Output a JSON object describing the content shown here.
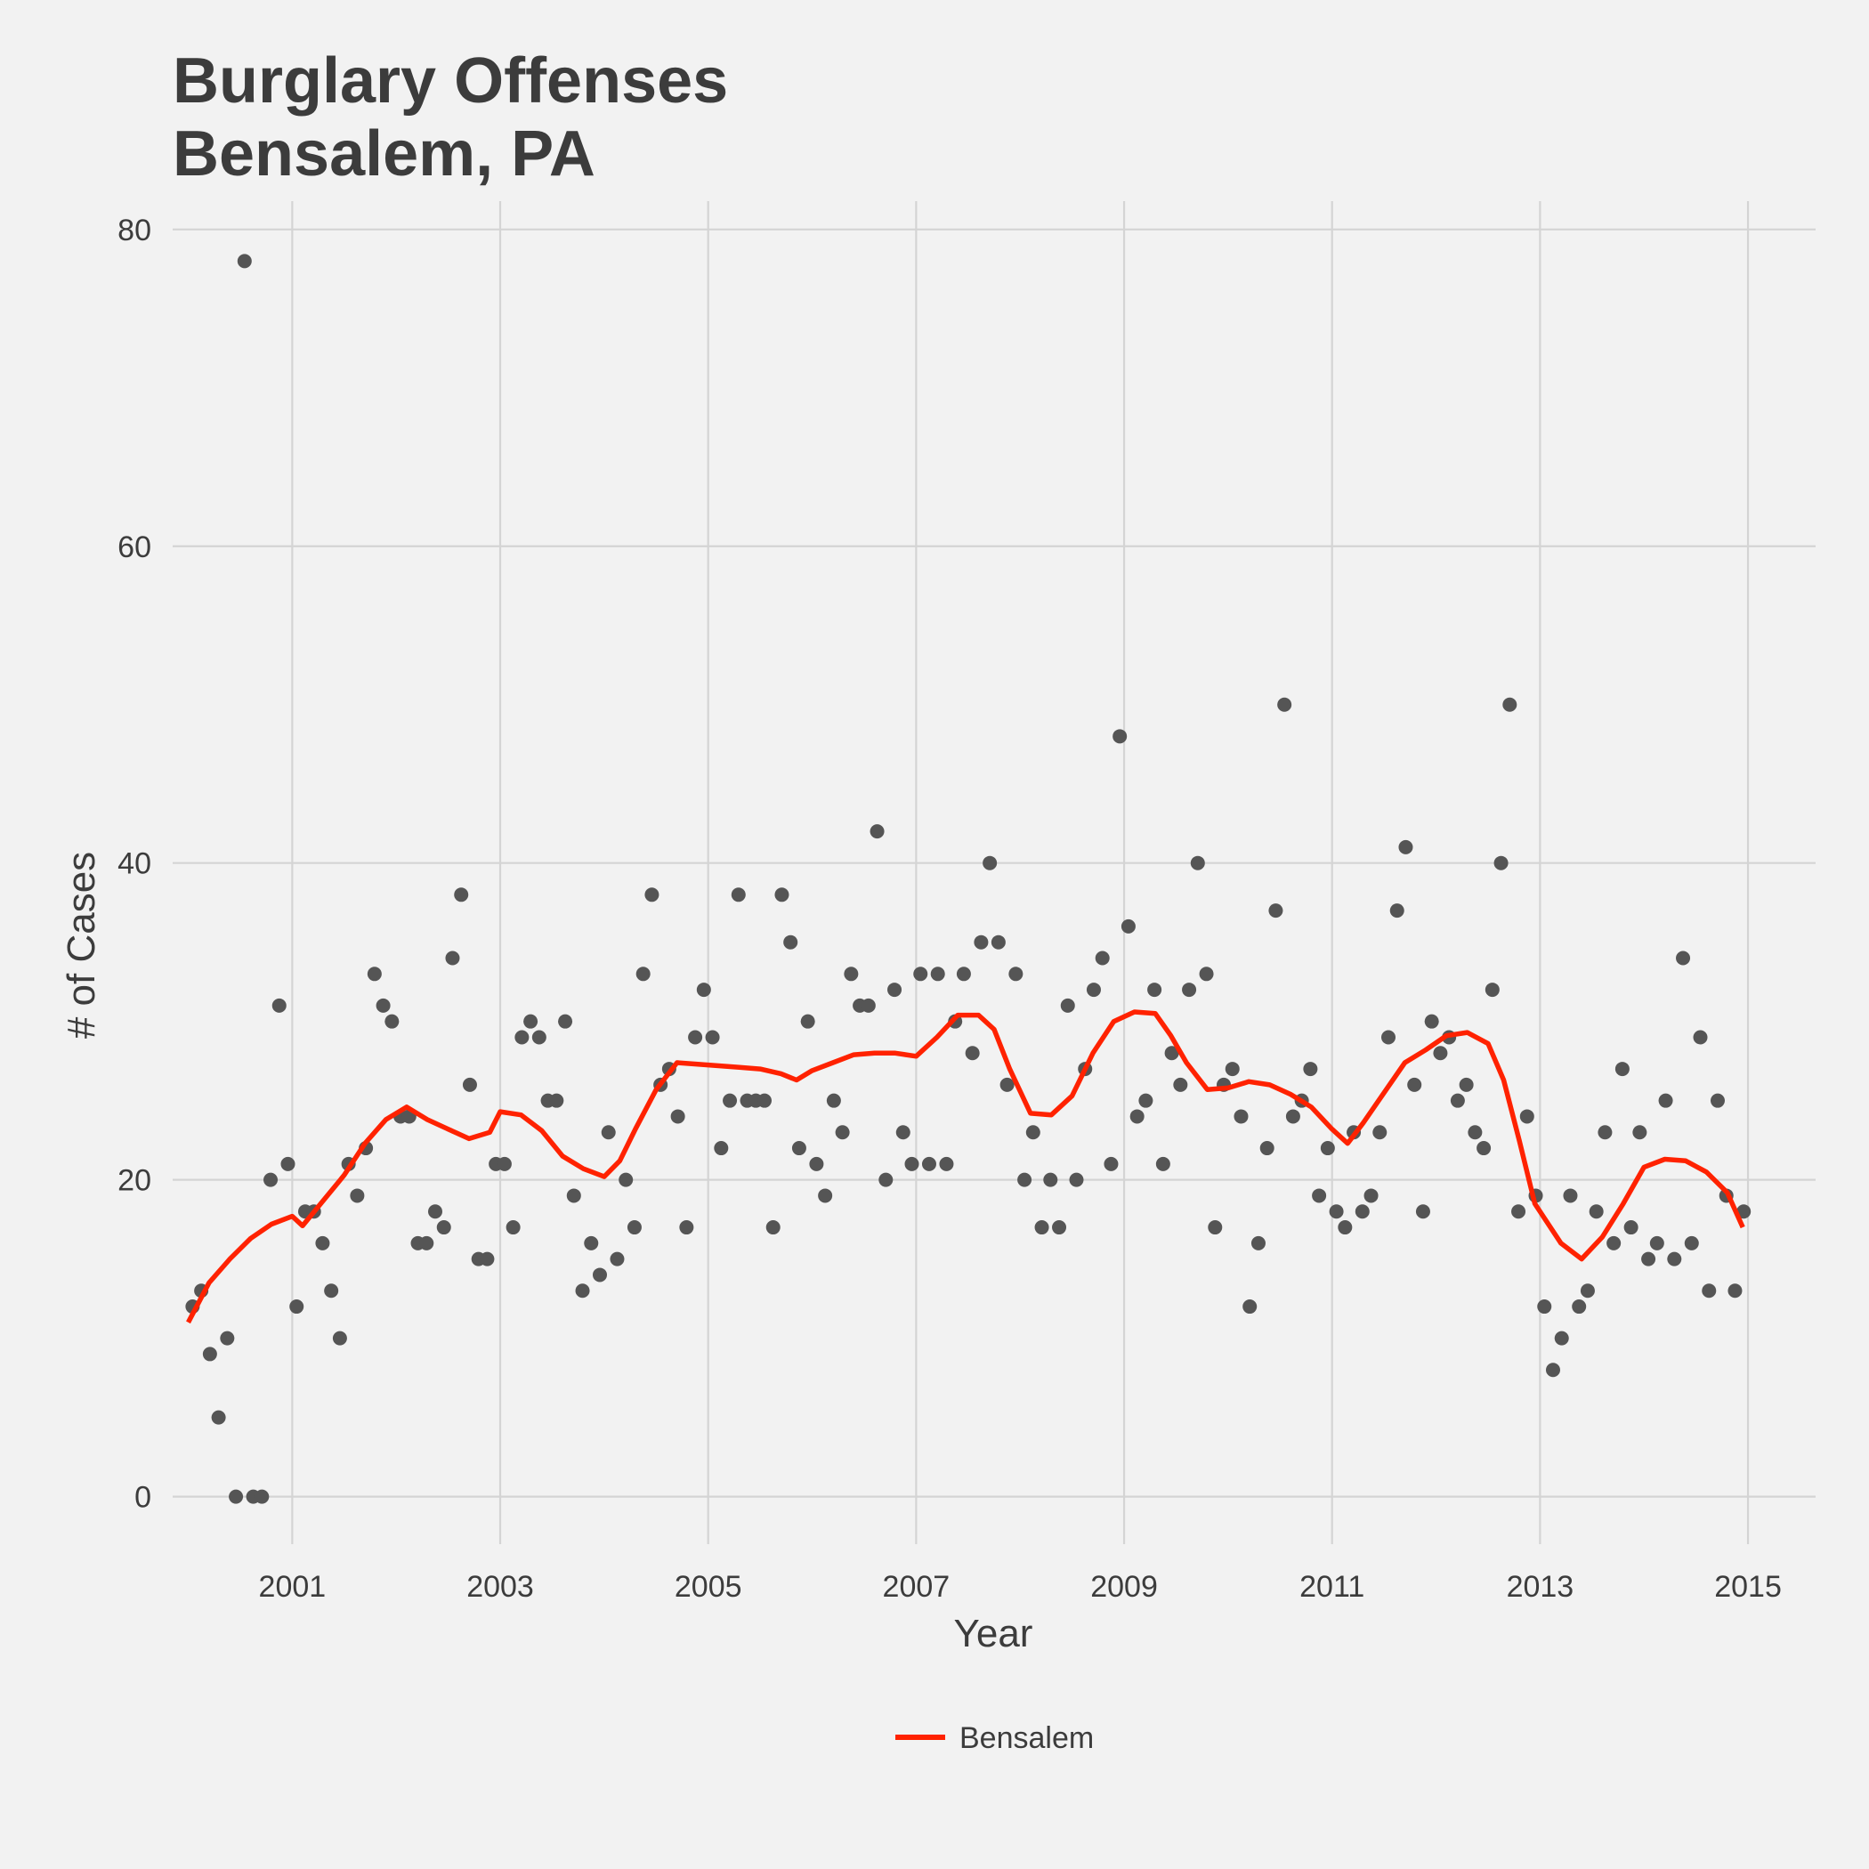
{
  "chart_data": {
    "type": "scatter",
    "title": [
      "Burglary Offenses",
      "Bensalem, PA"
    ],
    "xlabel": "Year",
    "ylabel": "# of Cases",
    "xlim": [
      1999.85,
      2015.65
    ],
    "ylim": [
      -3,
      81
    ],
    "x_ticks": [
      2001,
      2003,
      2005,
      2007,
      2009,
      2011,
      2013,
      2015
    ],
    "y_ticks": [
      0,
      20,
      40,
      60,
      80
    ],
    "grid": true,
    "legend": {
      "position": "bottom",
      "entries": [
        "Bensalem"
      ]
    },
    "colors": {
      "points": "#555555",
      "trend": "#ff2200",
      "grid": "#d4d4d4",
      "background": "#f2f2f2"
    },
    "points": {
      "start_year": 2000,
      "interval": "monthly",
      "values": [
        12,
        13,
        9,
        5,
        10,
        0,
        78,
        0,
        0,
        20,
        31,
        21,
        12,
        18,
        18,
        16,
        13,
        10,
        21,
        19,
        22,
        33,
        31,
        30,
        24,
        24,
        16,
        16,
        18,
        17,
        34,
        38,
        26,
        15,
        15,
        21,
        21,
        17,
        29,
        30,
        29,
        25,
        25,
        30,
        19,
        13,
        16,
        14,
        23,
        15,
        20,
        17,
        33,
        38,
        26,
        27,
        24,
        17,
        29,
        32,
        29,
        22,
        25,
        38,
        25,
        25,
        25,
        17,
        38,
        35,
        22,
        30,
        21,
        19,
        25,
        23,
        33,
        31,
        31,
        42,
        20,
        32,
        23,
        21,
        33,
        21,
        33,
        21,
        30,
        33,
        28,
        35,
        40,
        35,
        26,
        33,
        20,
        23,
        17,
        20,
        17,
        31,
        20,
        27,
        32,
        34,
        21,
        48,
        36,
        24,
        25,
        32,
        21,
        28,
        26,
        32,
        40,
        33,
        17,
        26,
        27,
        24,
        12,
        16,
        22,
        37,
        50,
        24,
        25,
        27,
        19,
        22,
        18,
        17,
        23,
        18,
        19,
        23,
        29,
        37,
        41,
        26,
        18,
        30,
        28,
        29,
        25,
        26,
        23,
        22,
        32,
        40,
        50,
        18,
        24,
        19,
        12,
        8,
        10,
        19,
        12,
        13,
        18,
        23,
        16,
        27,
        17,
        23,
        15,
        16,
        25,
        15,
        34,
        16,
        29,
        13,
        25,
        19,
        13,
        18
      ]
    },
    "series": [
      {
        "name": "Bensalem",
        "type": "line",
        "x": [
          2000.0,
          2000.2,
          2000.4,
          2000.6,
          2000.8,
          2001.0,
          2001.1,
          2001.3,
          2001.5,
          2001.7,
          2001.9,
          2002.1,
          2002.3,
          2002.5,
          2002.7,
          2002.9,
          2003.0,
          2003.2,
          2003.4,
          2003.6,
          2003.8,
          2004.0,
          2004.15,
          2004.3,
          2004.5,
          2004.7,
          2004.9,
          2005.1,
          2005.3,
          2005.5,
          2005.7,
          2005.85,
          2006.0,
          2006.2,
          2006.4,
          2006.6,
          2006.8,
          2007.0,
          2007.2,
          2007.4,
          2007.6,
          2007.75,
          2007.9,
          2008.1,
          2008.3,
          2008.5,
          2008.7,
          2008.9,
          2009.1,
          2009.3,
          2009.45,
          2009.6,
          2009.8,
          2010.0,
          2010.2,
          2010.4,
          2010.6,
          2010.8,
          2011.0,
          2011.15,
          2011.3,
          2011.5,
          2011.7,
          2011.9,
          2012.1,
          2012.3,
          2012.5,
          2012.65,
          2012.8,
          2012.95,
          2013.05,
          2013.2,
          2013.4,
          2013.6,
          2013.8,
          2014.0,
          2014.2,
          2014.4,
          2014.6,
          2014.8,
          2014.95
        ],
        "y": [
          11,
          13.5,
          15,
          16.3,
          17.2,
          17.7,
          17.1,
          18.7,
          20.3,
          22.3,
          23.8,
          24.6,
          23.8,
          23.2,
          22.6,
          23.0,
          24.3,
          24.1,
          23.1,
          21.5,
          20.7,
          20.2,
          21.2,
          23.2,
          25.7,
          27.4,
          27.3,
          27.2,
          27.1,
          27.0,
          26.7,
          26.3,
          26.9,
          27.4,
          27.9,
          28.0,
          28.0,
          27.8,
          29.0,
          30.4,
          30.4,
          29.5,
          27.0,
          24.2,
          24.1,
          25.3,
          28.0,
          30.0,
          30.6,
          30.5,
          29.1,
          27.4,
          25.7,
          25.8,
          26.2,
          26.0,
          25.4,
          24.6,
          23.2,
          22.3,
          23.6,
          25.5,
          27.4,
          28.2,
          29.1,
          29.3,
          28.6,
          26.3,
          22.5,
          18.5,
          17.5,
          16.0,
          15.0,
          16.4,
          18.5,
          20.8,
          21.3,
          21.2,
          20.5,
          19.2,
          17.0
        ]
      }
    ]
  }
}
